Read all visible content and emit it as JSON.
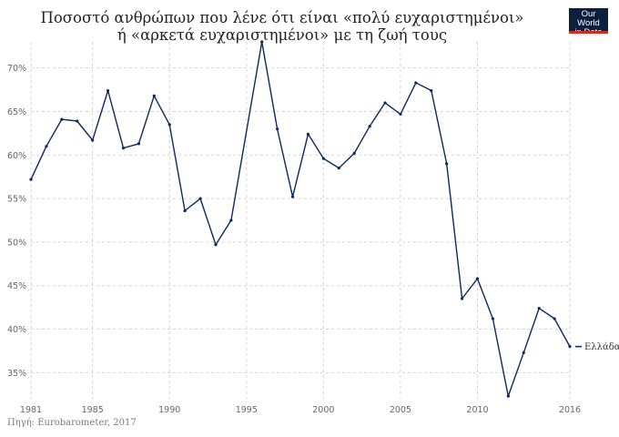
{
  "header": {
    "title_line1": "Ποσοστό ανθρώπων που λένε ότι είναι «πολύ ευχαριστημένοι»",
    "title_line2": "ή «αρκετά ευχαριστημένοι» με τη ζωή τους",
    "logo_line1": "Our World",
    "logo_line2": "in Data"
  },
  "footer": {
    "source": "Πηγή: Eurobarometer, 2017"
  },
  "colors": {
    "series": "#0c2a5b",
    "grid": "#d4d4d4",
    "logo_bg": "#0c1f3f",
    "logo_accent": "#d42b21"
  },
  "chart_data": {
    "type": "line",
    "title": "Ποσοστό ανθρώπων που λένε ότι είναι «πολύ ευχαριστημένοι» ή «αρκετά ευχαριστημένοι» με τη ζωή τους",
    "xlabel": "",
    "ylabel": "",
    "xlim": [
      1981,
      2016
    ],
    "ylim": [
      32,
      73
    ],
    "x_ticks": [
      "1981",
      "1985",
      "1990",
      "1995",
      "2000",
      "2005",
      "2010",
      "2016"
    ],
    "y_ticks": [
      "35%",
      "40%",
      "45%",
      "50%",
      "55%",
      "60%",
      "65%",
      "70%"
    ],
    "grid": true,
    "legend_position": "right-end-label",
    "series": [
      {
        "name": "Ελλάδα",
        "x": [
          1981,
          1982,
          1983,
          1984,
          1985,
          1986,
          1987,
          1988,
          1989,
          1990,
          1991,
          1992,
          1993,
          1994,
          1996,
          1997,
          1998,
          1999,
          2000,
          2001,
          2002,
          2003,
          2004,
          2005,
          2006,
          2007,
          2008,
          2009,
          2010,
          2011,
          2012,
          2013,
          2014,
          2015,
          2016
        ],
        "values": [
          57.2,
          61.0,
          64.1,
          63.9,
          61.7,
          67.4,
          60.8,
          61.3,
          66.8,
          63.5,
          53.6,
          55.0,
          49.7,
          52.5,
          73.0,
          63.0,
          55.2,
          62.4,
          59.6,
          58.5,
          60.2,
          63.3,
          66.0,
          64.7,
          68.3,
          67.4,
          59.0,
          43.5,
          45.8,
          41.2,
          32.3,
          37.3,
          42.4,
          41.2,
          38.0
        ]
      }
    ]
  }
}
